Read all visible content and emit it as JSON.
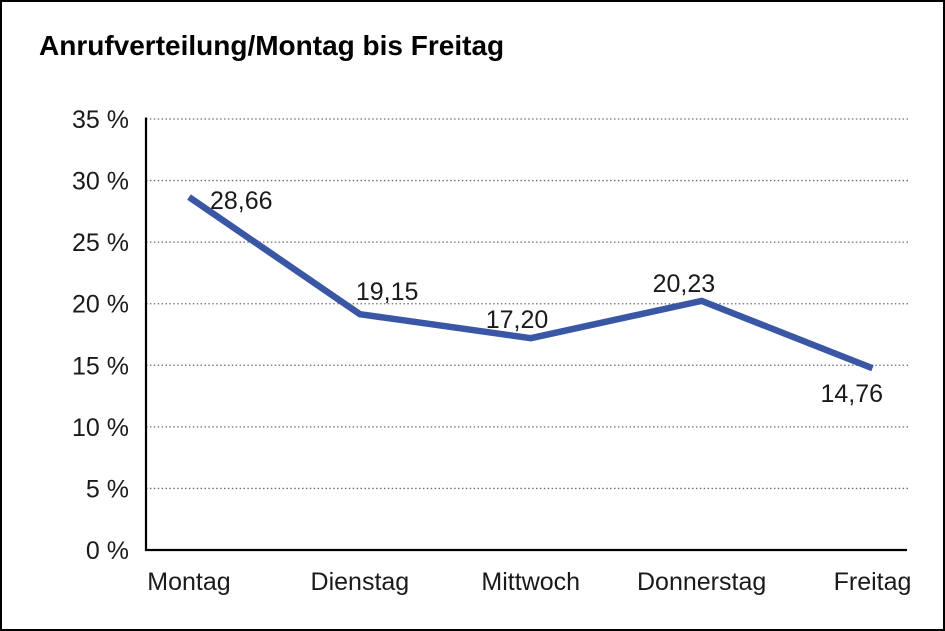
{
  "window": {
    "background_color": "#ffffff",
    "frame_border_color": "#000000"
  },
  "chart_data": {
    "type": "line",
    "title": "Anrufverteilung/Montag bis Freitag",
    "categories": [
      "Montag",
      "Dienstag",
      "Mittwoch",
      "Donnerstag",
      "Freitag"
    ],
    "values": [
      28.66,
      19.15,
      17.2,
      20.23,
      14.76
    ],
    "value_labels": [
      "28,66",
      "19,15",
      "17,20",
      "20,23",
      "14,76"
    ],
    "xlabel": "",
    "ylabel": "",
    "y_axis": {
      "min": 0,
      "max": 35,
      "step": 5,
      "tick_labels_top_to_bottom": [
        "35 %",
        "30 %",
        "25 %",
        "20 %",
        "15 %",
        "10 %",
        "5 %",
        "0 %"
      ]
    },
    "legend": "none",
    "grid": "horizontal-dotted",
    "line_color": "#3A57A5",
    "grid_color": "#6e6e6e",
    "axis_color": "#000000",
    "text_color": "#1a1a1a"
  }
}
